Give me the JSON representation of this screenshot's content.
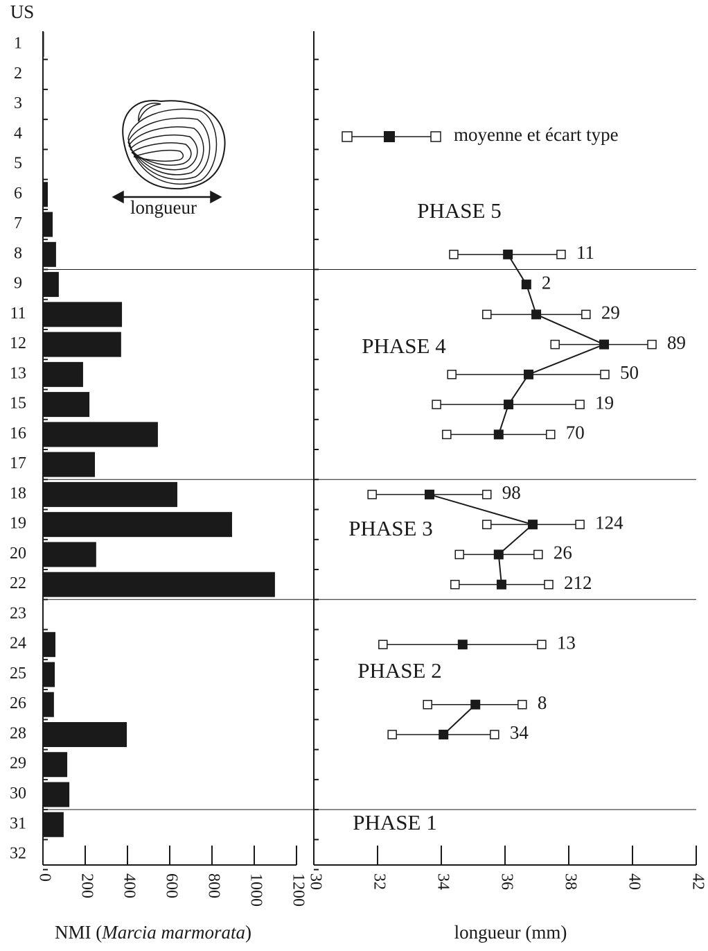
{
  "chart_data": [
    {
      "type": "bar",
      "orientation": "horizontal",
      "ylabel": "US",
      "categories": [
        "1",
        "2",
        "3",
        "4",
        "5",
        "6",
        "7",
        "8",
        "9",
        "11",
        "12",
        "13",
        "15",
        "16",
        "17",
        "18",
        "19",
        "20",
        "22",
        "23",
        "24",
        "25",
        "26",
        "28",
        "29",
        "30",
        "31",
        "32"
      ],
      "values": [
        5,
        0,
        3,
        0,
        0,
        23,
        46,
        62,
        75,
        374,
        370,
        190,
        220,
        544,
        246,
        636,
        895,
        252,
        1098,
        0,
        59,
        56,
        52,
        397,
        115,
        125,
        98,
        0
      ],
      "color": "#1a1a1a",
      "xlim": [
        0,
        1200
      ],
      "xticks": [
        0,
        200,
        400,
        600,
        800,
        1000,
        1200
      ],
      "xlabel": [
        "NMI (",
        "Marcia marmorata",
        ")"
      ]
    },
    {
      "type": "errorbar",
      "xlabel": "longueur (mm)",
      "xlim": [
        30,
        42
      ],
      "xticks": [
        30,
        32,
        34,
        36,
        38,
        40,
        42
      ],
      "mean": [
        null,
        null,
        null,
        null,
        null,
        null,
        null,
        36.09,
        36.67,
        36.98,
        39.11,
        36.74,
        36.11,
        35.8,
        null,
        33.63,
        36.87,
        35.8,
        35.89,
        null,
        34.67,
        null,
        35.07,
        34.07,
        null,
        null,
        null,
        null
      ],
      "low": [
        null,
        null,
        null,
        null,
        null,
        null,
        null,
        34.39,
        null,
        35.43,
        37.57,
        34.33,
        33.85,
        34.17,
        null,
        31.83,
        35.43,
        34.57,
        34.43,
        null,
        32.17,
        null,
        33.57,
        32.46,
        null,
        null,
        null,
        null
      ],
      "high": [
        null,
        null,
        null,
        null,
        null,
        null,
        null,
        37.76,
        null,
        38.54,
        40.61,
        39.13,
        38.35,
        37.43,
        null,
        35.43,
        38.35,
        37.04,
        37.37,
        null,
        37.15,
        null,
        36.54,
        35.67,
        null,
        null,
        null,
        null
      ],
      "n": [
        null,
        null,
        null,
        null,
        null,
        null,
        null,
        11,
        2,
        29,
        89,
        50,
        19,
        70,
        null,
        98,
        124,
        26,
        212,
        null,
        13,
        null,
        8,
        34,
        null,
        null,
        null,
        null
      ],
      "legend": "moyenne et écart type",
      "phases": [
        "PHASE 5",
        "PHASE 4",
        "PHASE 3",
        "PHASE 2",
        "PHASE 1"
      ],
      "illustration_label": "longueur"
    }
  ]
}
